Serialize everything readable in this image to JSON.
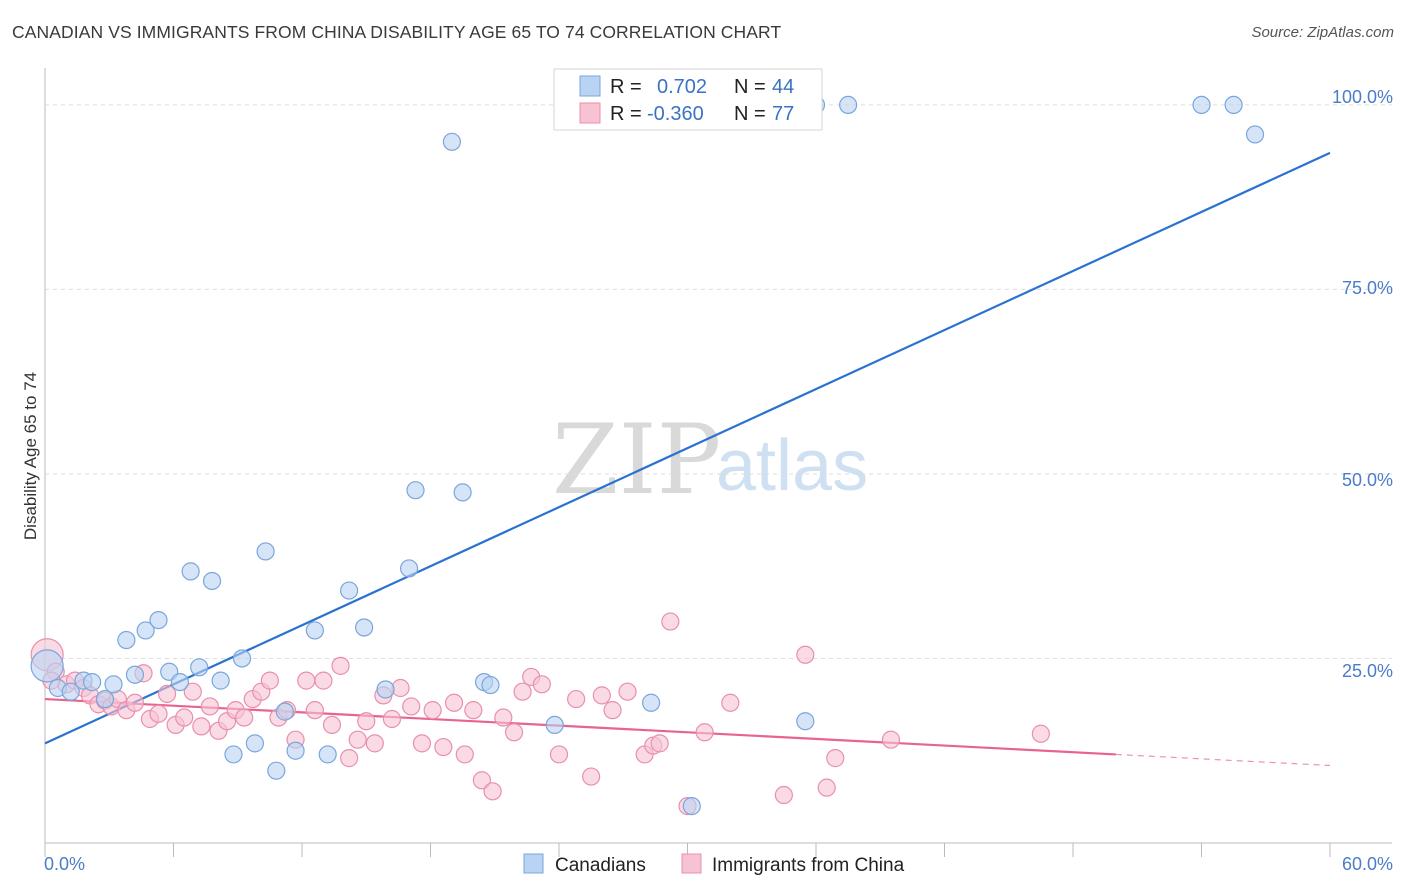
{
  "header": {
    "title": "CANADIAN VS IMMIGRANTS FROM CHINA DISABILITY AGE 65 TO 74 CORRELATION CHART",
    "source": "Source: ZipAtlas.com"
  },
  "watermark": {
    "zip": "ZIP",
    "atlas": "atlas"
  },
  "legend_top": {
    "rows": [
      {
        "r_label": "R = ",
        "r_value": "0.702",
        "n_label": "N = ",
        "n_value": "44"
      },
      {
        "r_label": "R = ",
        "r_value": "-0.360",
        "n_label": "N = ",
        "n_value": "77"
      }
    ]
  },
  "legend_bottom": {
    "series1": "Canadians",
    "series2": "Immigrants from China"
  },
  "colors": {
    "blue_fill": "#b9d3f2",
    "blue_stroke": "#7aa6dc",
    "blue_line": "#2a72d0",
    "pink_fill": "#f7c3d3",
    "pink_stroke": "#e98fae",
    "pink_line": "#e8638f"
  },
  "chart_data": {
    "type": "scatter",
    "title": "CANADIAN VS IMMIGRANTS FROM CHINA DISABILITY AGE 65 TO 74 CORRELATION CHART",
    "xlabel": "",
    "ylabel": "Disability Age 65 to 74",
    "xlim": [
      0,
      60
    ],
    "ylim": [
      0,
      105
    ],
    "x_tick_labels": [
      "0.0%",
      "60.0%"
    ],
    "y_ticks": [
      25,
      50,
      75,
      100
    ],
    "y_tick_labels": [
      "25.0%",
      "50.0%",
      "75.0%",
      "100.0%"
    ],
    "series": [
      {
        "name": "Canadians",
        "r": 0.702,
        "n": 44,
        "trend": {
          "x": [
            0,
            60
          ],
          "y": [
            13.5,
            93.5
          ]
        },
        "points": [
          [
            0.1,
            24.0
          ],
          [
            0.6,
            21.0
          ],
          [
            1.2,
            20.5
          ],
          [
            1.8,
            22.0
          ],
          [
            2.2,
            21.8
          ],
          [
            2.8,
            19.5
          ],
          [
            3.2,
            21.5
          ],
          [
            3.8,
            27.5
          ],
          [
            4.2,
            22.8
          ],
          [
            4.7,
            28.8
          ],
          [
            5.3,
            30.2
          ],
          [
            5.8,
            23.2
          ],
          [
            6.3,
            21.8
          ],
          [
            6.8,
            36.8
          ],
          [
            7.2,
            23.8
          ],
          [
            7.8,
            35.5
          ],
          [
            8.2,
            22.0
          ],
          [
            8.8,
            12.0
          ],
          [
            9.2,
            25.0
          ],
          [
            9.8,
            13.5
          ],
          [
            10.3,
            39.5
          ],
          [
            10.8,
            9.8
          ],
          [
            11.2,
            17.8
          ],
          [
            11.7,
            12.5
          ],
          [
            12.6,
            28.8
          ],
          [
            13.2,
            12.0
          ],
          [
            14.2,
            34.2
          ],
          [
            14.9,
            29.2
          ],
          [
            15.9,
            20.8
          ],
          [
            17.0,
            37.2
          ],
          [
            17.3,
            47.8
          ],
          [
            19.0,
            95.0
          ],
          [
            19.5,
            47.5
          ],
          [
            20.5,
            21.8
          ],
          [
            20.8,
            21.4
          ],
          [
            23.8,
            16.0
          ],
          [
            28.3,
            19.0
          ],
          [
            30.2,
            5.0
          ],
          [
            35.5,
            16.5
          ],
          [
            36.0,
            100.0
          ],
          [
            37.5,
            100.0
          ],
          [
            54.0,
            100.0
          ],
          [
            55.5,
            100.0
          ],
          [
            56.5,
            96.0
          ]
        ]
      },
      {
        "name": "Immigrants from China",
        "r": -0.36,
        "n": 77,
        "trend": {
          "x": [
            0,
            50
          ],
          "y": [
            19.5,
            12.0
          ]
        },
        "trend_dashed": {
          "x": [
            50,
            60
          ],
          "y": [
            12.0,
            10.5
          ]
        },
        "points": [
          [
            0.1,
            25.5
          ],
          [
            0.5,
            23.2
          ],
          [
            1.0,
            21.5
          ],
          [
            1.4,
            22.0
          ],
          [
            1.8,
            21.0
          ],
          [
            2.1,
            20.0
          ],
          [
            2.5,
            18.8
          ],
          [
            2.8,
            19.3
          ],
          [
            3.1,
            18.5
          ],
          [
            3.4,
            19.5
          ],
          [
            3.8,
            18.0
          ],
          [
            4.2,
            19.0
          ],
          [
            4.6,
            23.0
          ],
          [
            4.9,
            16.8
          ],
          [
            5.3,
            17.5
          ],
          [
            5.7,
            20.2
          ],
          [
            6.1,
            16.0
          ],
          [
            6.5,
            17.0
          ],
          [
            6.9,
            20.5
          ],
          [
            7.3,
            15.8
          ],
          [
            7.7,
            18.5
          ],
          [
            8.1,
            15.2
          ],
          [
            8.5,
            16.5
          ],
          [
            8.9,
            18.0
          ],
          [
            9.3,
            17.0
          ],
          [
            9.7,
            19.5
          ],
          [
            10.1,
            20.5
          ],
          [
            10.5,
            22.0
          ],
          [
            10.9,
            17.0
          ],
          [
            11.3,
            18.0
          ],
          [
            11.7,
            14.0
          ],
          [
            12.2,
            22.0
          ],
          [
            12.6,
            18.0
          ],
          [
            13.0,
            22.0
          ],
          [
            13.4,
            16.0
          ],
          [
            13.8,
            24.0
          ],
          [
            14.2,
            11.5
          ],
          [
            14.6,
            14.0
          ],
          [
            15.0,
            16.5
          ],
          [
            15.4,
            13.5
          ],
          [
            15.8,
            20.0
          ],
          [
            16.2,
            16.8
          ],
          [
            16.6,
            21.0
          ],
          [
            17.1,
            18.5
          ],
          [
            17.6,
            13.5
          ],
          [
            18.1,
            18.0
          ],
          [
            18.6,
            13.0
          ],
          [
            19.1,
            19.0
          ],
          [
            19.6,
            12.0
          ],
          [
            20.0,
            18.0
          ],
          [
            20.4,
            8.5
          ],
          [
            20.9,
            7.0
          ],
          [
            21.4,
            17.0
          ],
          [
            21.9,
            15.0
          ],
          [
            22.3,
            20.5
          ],
          [
            22.7,
            22.5
          ],
          [
            23.2,
            21.5
          ],
          [
            24.0,
            12.0
          ],
          [
            24.8,
            19.5
          ],
          [
            25.5,
            9.0
          ],
          [
            26.0,
            20.0
          ],
          [
            26.5,
            18.0
          ],
          [
            27.2,
            20.5
          ],
          [
            28.0,
            12.0
          ],
          [
            28.4,
            13.2
          ],
          [
            28.7,
            13.5
          ],
          [
            29.2,
            30.0
          ],
          [
            30.0,
            5.0
          ],
          [
            30.8,
            15.0
          ],
          [
            32.0,
            19.0
          ],
          [
            34.5,
            6.5
          ],
          [
            35.5,
            25.5
          ],
          [
            36.5,
            7.5
          ],
          [
            36.9,
            11.5
          ],
          [
            39.5,
            14.0
          ],
          [
            46.5,
            14.8
          ],
          [
            0.3,
            22.0
          ]
        ]
      }
    ]
  }
}
